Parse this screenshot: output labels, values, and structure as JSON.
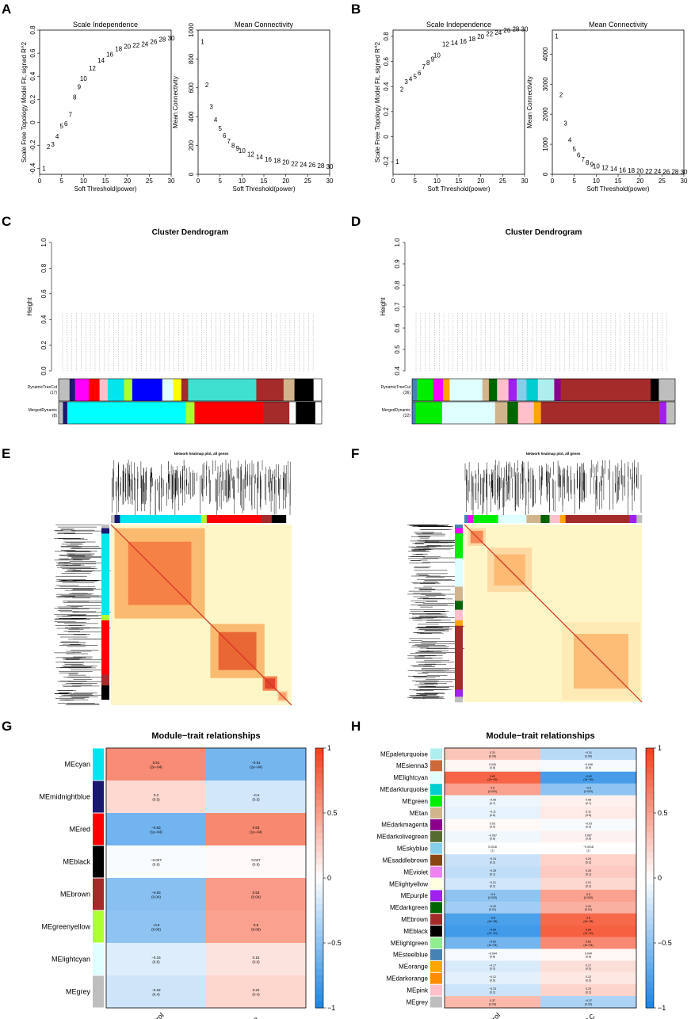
{
  "panels": {
    "A": "A",
    "B": "B",
    "C": "C",
    "D": "D",
    "E": "E",
    "F": "F",
    "G": "G",
    "H": "H"
  },
  "chart_data": [
    {
      "id": "A-scale",
      "type": "scatter",
      "title": "Scale Independence",
      "xlabel": "Soft Threshold(power)",
      "ylabel": "Scale Free Topology Model Fit, signed R^2",
      "xlim": [
        0,
        30
      ],
      "ylim": [
        -0.45,
        0.8
      ],
      "xticks": [
        0,
        5,
        10,
        15,
        20,
        25,
        30
      ],
      "yticks": [
        -0.4,
        -0.2,
        0.0,
        0.2,
        0.4,
        0.6,
        0.8
      ],
      "x": [
        1,
        2,
        3,
        4,
        5,
        6,
        7,
        8,
        9,
        10,
        12,
        14,
        16,
        18,
        20,
        22,
        24,
        26,
        28,
        30
      ],
      "y": [
        -0.4,
        -0.21,
        -0.19,
        -0.12,
        -0.03,
        -0.01,
        0.07,
        0.22,
        0.31,
        0.38,
        0.47,
        0.54,
        0.59,
        0.64,
        0.66,
        0.67,
        0.68,
        0.7,
        0.72,
        0.73
      ],
      "labels": [
        "1",
        "2",
        "3",
        "4",
        "5",
        "6",
        "7",
        "8",
        "9",
        "10",
        "12",
        "14",
        "16",
        "18",
        "20",
        "22",
        "24",
        "26",
        "28",
        "30"
      ]
    },
    {
      "id": "A-mean",
      "type": "scatter",
      "title": "Mean Connectivity",
      "xlabel": "Soft Threshold(power)",
      "ylabel": "Mean Connectivity",
      "xlim": [
        0,
        30
      ],
      "ylim": [
        0,
        1000
      ],
      "xticks": [
        0,
        5,
        10,
        15,
        20,
        25,
        30
      ],
      "yticks": [
        0,
        200,
        400,
        600,
        800,
        1000
      ],
      "x": [
        1,
        2,
        3,
        4,
        5,
        6,
        7,
        8,
        9,
        10,
        12,
        14,
        16,
        18,
        20,
        22,
        24,
        26,
        28,
        30
      ],
      "y": [
        920,
        620,
        470,
        380,
        320,
        270,
        230,
        200,
        180,
        165,
        140,
        120,
        105,
        95,
        85,
        75,
        70,
        65,
        60,
        55
      ],
      "labels": [
        "1",
        "2",
        "3",
        "4",
        "5",
        "6",
        "7",
        "8",
        "9",
        "10",
        "12",
        "14",
        "16",
        "18",
        "20",
        "22",
        "24",
        "26",
        "28",
        "30"
      ]
    },
    {
      "id": "B-scale",
      "type": "scatter",
      "title": "Scale Independence",
      "xlabel": "Soft Threshold(power)",
      "ylabel": "Scale Free Topology Model Fit, signed R^2",
      "xlim": [
        0,
        30
      ],
      "ylim": [
        -0.3,
        0.85
      ],
      "xticks": [
        0,
        5,
        10,
        15,
        20,
        25,
        30
      ],
      "yticks": [
        -0.2,
        0.0,
        0.2,
        0.4,
        0.6,
        0.8
      ],
      "x": [
        1,
        2,
        3,
        4,
        5,
        6,
        7,
        8,
        9,
        10,
        12,
        14,
        16,
        18,
        20,
        22,
        24,
        26,
        28,
        30
      ],
      "y": [
        -0.2,
        0.38,
        0.44,
        0.46,
        0.48,
        0.51,
        0.56,
        0.59,
        0.62,
        0.65,
        0.74,
        0.75,
        0.76,
        0.78,
        0.8,
        0.82,
        0.83,
        0.85,
        0.86,
        0.86
      ],
      "labels": [
        "1",
        "2",
        "3",
        "4",
        "5",
        "6",
        "7",
        "8",
        "9",
        "10",
        "12",
        "14",
        "16",
        "18",
        "20",
        "22",
        "24",
        "26",
        "28",
        "30"
      ]
    },
    {
      "id": "B-mean",
      "type": "scatter",
      "title": "Mean Connectivity",
      "xlabel": "Soft Threshold(power)",
      "ylabel": "Mean Connectivity",
      "xlim": [
        0,
        30
      ],
      "ylim": [
        0,
        4800
      ],
      "xticks": [
        0,
        5,
        10,
        15,
        20,
        25,
        30
      ],
      "yticks": [
        0,
        1000,
        2000,
        3000,
        4000
      ],
      "x": [
        1,
        2,
        3,
        4,
        5,
        6,
        7,
        8,
        9,
        10,
        12,
        14,
        16,
        18,
        20,
        22,
        24,
        26,
        28,
        30
      ],
      "y": [
        4600,
        2650,
        1700,
        1150,
        850,
        650,
        500,
        400,
        330,
        280,
        220,
        180,
        150,
        130,
        120,
        110,
        100,
        95,
        90,
        85
      ],
      "labels": [
        "1",
        "2",
        "3",
        "4",
        "5",
        "6",
        "7",
        "8",
        "9",
        "10",
        "12",
        "14",
        "16",
        "18",
        "20",
        "22",
        "24",
        "26",
        "28",
        "30"
      ]
    },
    {
      "id": "C-dendrogram",
      "type": "dendrogram",
      "title": "Cluster Dendrogram",
      "ylabel": "Height",
      "yticks": [
        0.0,
        0.2,
        0.4,
        0.6,
        0.8,
        1.0
      ],
      "row_labels": [
        "DynamicTreeCut",
        "(17)",
        "MergedDynamic",
        "(8)"
      ]
    },
    {
      "id": "D-dendrogram",
      "type": "dendrogram",
      "title": "Cluster Dendrogram",
      "ylabel": "Height",
      "yticks": [
        0.4,
        0.5,
        0.6,
        0.7,
        0.8,
        0.9,
        1.0
      ],
      "row_labels": [
        "DynamicTreeCut",
        "(36)",
        "MergedDynamic",
        "(22)"
      ]
    },
    {
      "id": "E-heatmap",
      "type": "heatmap",
      "title": "Network heatmap plot, all genes"
    },
    {
      "id": "F-heatmap",
      "type": "heatmap",
      "title": "Network heatmap plot, all genes"
    },
    {
      "id": "G-module-trait",
      "type": "heatmap",
      "title": "Module−trait relationships",
      "columns": [
        "Control",
        "CP"
      ],
      "legend_ticks": [
        "1",
        "0.5",
        "0",
        "−0.5",
        "−1"
      ],
      "rows": [
        {
          "name": "MEcyan",
          "color": "#00e5ee",
          "values": [
            0.61,
            -0.61
          ],
          "labels": [
            "0.61\n(2e−04)",
            "−0.61\n(2e−04)"
          ]
        },
        {
          "name": "MEmidnightblue",
          "color": "#191970",
          "values": [
            0.2,
            -0.2
          ],
          "labels": [
            "0.2\n(0.5)",
            "−0.2\n(0.5)"
          ]
        },
        {
          "name": "MEred",
          "color": "#ff0000",
          "values": [
            -0.63,
            0.63
          ],
          "labels": [
            "−0.63\n(1e−04)",
            "0.63\n(1e−04)"
          ]
        },
        {
          "name": "MEblack",
          "color": "#000000",
          "values": [
            -0.027,
            0.027
          ],
          "labels": [
            "−0.027\n(0.9)",
            "0.027\n(0.9)"
          ]
        },
        {
          "name": "MEbrown",
          "color": "#a52a2a",
          "values": [
            -0.53,
            0.53
          ],
          "labels": [
            "−0.53\n(0.04)",
            "0.53\n(0.04)"
          ]
        },
        {
          "name": "MEgreenyellow",
          "color": "#adff2f",
          "values": [
            -0.5,
            0.5
          ],
          "labels": [
            "−0.5\n(0.06)",
            "0.5\n(0.06)"
          ]
        },
        {
          "name": "MElightcyan",
          "color": "#e0ffff",
          "values": [
            -0.15,
            0.15
          ],
          "labels": [
            "−0.15\n(0.6)",
            "0.15\n(0.6)"
          ]
        },
        {
          "name": "MEgrey",
          "color": "#bebebe",
          "values": [
            -0.22,
            0.22
          ],
          "labels": [
            "−0.22\n(0.4)",
            "0.22\n(0.4)"
          ]
        }
      ]
    },
    {
      "id": "H-module-trait",
      "type": "heatmap",
      "title": "Module−trait relationships",
      "columns": [
        "Control",
        "PDAC"
      ],
      "legend_ticks": [
        "1",
        "0.5",
        "0",
        "−0.5",
        "−1"
      ],
      "rows": [
        {
          "name": "MEpaleturquoise",
          "color": "#afeeee",
          "values": [
            0.31,
            -0.31
          ],
          "labels": [
            "0.31\n(0.06)",
            "−0.31\n(0.06)"
          ]
        },
        {
          "name": "MEsienna3",
          "color": "#cd6839",
          "values": [
            0.046,
            -0.046
          ],
          "labels": [
            "0.046\n(0.8)",
            "−0.046\n(0.8)"
          ]
        },
        {
          "name": "MElightcyan",
          "color": "#e0ffff",
          "values": [
            0.82,
            -0.82
          ],
          "labels": [
            "0.82\n(2e−09)",
            "−0.82\n(2e−09)"
          ]
        },
        {
          "name": "MEdarkturquoise",
          "color": "#00ced1",
          "values": [
            0.5,
            -0.5
          ],
          "labels": [
            "0.5\n(0.003)",
            "−0.5\n(0.003)"
          ]
        },
        {
          "name": "MEgreen",
          "color": "#00ee00",
          "values": [
            -0.08,
            0.08
          ],
          "labels": [
            "−0.08\n(0.7)",
            "0.08\n(0.7)"
          ]
        },
        {
          "name": "MEtan",
          "color": "#d2b48c",
          "values": [
            -0.11,
            0.11
          ],
          "labels": [
            "−0.11\n(0.5)",
            "0.11\n(0.5)"
          ]
        },
        {
          "name": "MEdarkmagenta",
          "color": "#8b008b",
          "values": [
            0.03,
            -0.03
          ],
          "labels": [
            "0.03\n(0.9)",
            "−0.03\n(0.9)"
          ]
        },
        {
          "name": "MEdarkolivegreen",
          "color": "#556b2f",
          "values": [
            -0.067,
            0.067
          ],
          "labels": [
            "−0.067\n(0.8)",
            "0.067\n(0.8)"
          ]
        },
        {
          "name": "MEskyblue",
          "color": "#87ceeb",
          "values": [
            0.0018,
            -0.0018
          ],
          "labels": [
            "0.0018\n(1)",
            "−0.0018\n(1)"
          ]
        },
        {
          "name": "MEsaddlebrown",
          "color": "#8b4513",
          "values": [
            -0.24,
            0.24
          ],
          "labels": [
            "−0.24\n(0.2)",
            "0.24\n(0.2)"
          ]
        },
        {
          "name": "MEviolet",
          "color": "#ee82ee",
          "values": [
            -0.28,
            0.28
          ],
          "labels": [
            "−0.28\n(0.1)",
            "0.28\n(0.1)"
          ]
        },
        {
          "name": "MElightyellow",
          "color": "#ffffe0",
          "values": [
            -0.21,
            0.21
          ],
          "labels": [
            "−0.21\n(0.2)",
            "0.21\n(0.2)"
          ]
        },
        {
          "name": "MEpurple",
          "color": "#a020f0",
          "values": [
            -0.5,
            0.5
          ],
          "labels": [
            "−0.5\n(0.003)",
            "0.5\n(0.003)"
          ]
        },
        {
          "name": "MEdarkgreen",
          "color": "#006400",
          "values": [
            -0.42,
            0.42
          ],
          "labels": [
            "−0.42\n(0.01)",
            "0.42\n(0.01)"
          ]
        },
        {
          "name": "MEbrown",
          "color": "#a52a2a",
          "values": [
            -0.8,
            0.8
          ],
          "labels": [
            "−0.8\n(3e−08)",
            "0.8\n(3e−08)"
          ]
        },
        {
          "name": "MEblack",
          "color": "#000000",
          "values": [
            -0.84,
            0.84
          ],
          "labels": [
            "−0.84\n(7e−10)",
            "0.84\n(7e−10)"
          ]
        },
        {
          "name": "MElightgreen",
          "color": "#90ee90",
          "values": [
            -0.62,
            0.62
          ],
          "labels": [
            "−0.62\n(1e−04)",
            "0.62\n(1e−04)"
          ]
        },
        {
          "name": "MEsteelblue",
          "color": "#4682b4",
          "values": [
            -0.044,
            0.044
          ],
          "labels": [
            "−0.044\n(0.8)",
            "0.044\n(0.8)"
          ]
        },
        {
          "name": "MEorange",
          "color": "#ffa500",
          "values": [
            -0.17,
            0.17
          ],
          "labels": [
            "−0.17\n(0.3)",
            "0.17\n(0.3)"
          ]
        },
        {
          "name": "MEdarkorange",
          "color": "#ff8c00",
          "values": [
            -0.12,
            0.12
          ],
          "labels": [
            "−0.12\n(0.5)",
            "0.12\n(0.5)"
          ]
        },
        {
          "name": "MEpink",
          "color": "#ffc0cb",
          "values": [
            -0.23,
            0.23
          ],
          "labels": [
            "−0.23\n(0.2)",
            "0.23\n(0.2)"
          ]
        },
        {
          "name": "MEgrey",
          "color": "#bebebe",
          "values": [
            0.37,
            -0.37
          ],
          "labels": [
            "0.37\n(0.03)",
            "−0.37\n(0.03)"
          ]
        }
      ]
    }
  ]
}
